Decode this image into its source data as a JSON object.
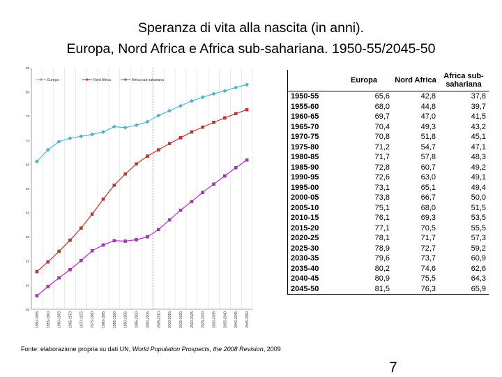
{
  "title_line1": "Speranza di vita alla nascita (in anni).",
  "title_line2": "Europa, Nord Africa e Africa sub-sahariana. 1950-55/2045-50",
  "source_prefix": "Fonte: elaborazione propria su dati UN, ",
  "source_italic": "World Population Prospects, the 2008 Revision",
  "source_suffix": ", 2009",
  "page_number": "7",
  "colors": {
    "europa": "#4db7d4",
    "nord_africa": "#d0312d",
    "africa_sub": "#b030c8",
    "dashed_line": "#aaaaaa",
    "grid": "#dddddd"
  },
  "table": {
    "headers": [
      "",
      "Europa",
      "Nord Africa",
      "Africa sub-sahariana"
    ],
    "rows": [
      [
        "1950-55",
        "65,6",
        "42,8",
        "37,8"
      ],
      [
        "1955-60",
        "68,0",
        "44,8",
        "39,7"
      ],
      [
        "1960-65",
        "69,7",
        "47,0",
        "41,5"
      ],
      [
        "1965-70",
        "70,4",
        "49,3",
        "43,2"
      ],
      [
        "1970-75",
        "70,8",
        "51,8",
        "45,1"
      ],
      [
        "1975-80",
        "71,2",
        "54,7",
        "47,1"
      ],
      [
        "1980-85",
        "71,7",
        "57,8",
        "48,3"
      ],
      [
        "1985-90",
        "72,8",
        "60,7",
        "49,2"
      ],
      [
        "1990-95",
        "72,6",
        "63,0",
        "49,1"
      ],
      [
        "1995-00",
        "73,1",
        "65,1",
        "49,4"
      ],
      [
        "2000-05",
        "73,8",
        "66,7",
        "50,0"
      ],
      [
        "2005-10",
        "75,1",
        "68,0",
        "51,5"
      ],
      [
        "2010-15",
        "76,1",
        "69,3",
        "53,5"
      ],
      [
        "2015-20",
        "77,1",
        "70,5",
        "55,5"
      ],
      [
        "2020-25",
        "78,1",
        "71,7",
        "57,3"
      ],
      [
        "2025-30",
        "78,9",
        "72,7",
        "59,2"
      ],
      [
        "2030-35",
        "79,6",
        "73,7",
        "60,9"
      ],
      [
        "2035-40",
        "80,2",
        "74,6",
        "62,6"
      ],
      [
        "2040-45",
        "80,9",
        "75,5",
        "64,3"
      ],
      [
        "2045-50",
        "81,5",
        "76,3",
        "65,9"
      ]
    ]
  },
  "chart_data": {
    "type": "line",
    "title": "",
    "xlabel": "",
    "ylabel": "",
    "ylim": [
      35,
      85
    ],
    "yticks": [
      "35",
      "40",
      "45",
      "50",
      "55",
      "60",
      "65",
      "70",
      "75",
      "80",
      "85"
    ],
    "grid": false,
    "legend_position": "top",
    "x": [
      "1950-1955",
      "1955-1960",
      "1960-1965",
      "1965-1970",
      "1970-1975",
      "1975-1980",
      "1980-1985",
      "1985-1990",
      "1990-1995",
      "1995-2000",
      "2000-2005",
      "2005-2010",
      "2010-2015",
      "2015-2020",
      "2020-2025",
      "2025-2030",
      "2030-2035",
      "2035-2040",
      "2040-2045",
      "2045-2050"
    ],
    "series": [
      {
        "name": "Europa",
        "marker": "diamond",
        "values": [
          65.6,
          68.0,
          69.7,
          70.4,
          70.8,
          71.2,
          71.7,
          72.8,
          72.6,
          73.1,
          73.8,
          75.1,
          76.1,
          77.1,
          78.1,
          78.9,
          79.6,
          80.2,
          80.9,
          81.5
        ]
      },
      {
        "name": "Nord Africa",
        "marker": "square",
        "values": [
          42.8,
          44.8,
          47.0,
          49.3,
          51.8,
          54.7,
          57.8,
          60.7,
          63.0,
          65.1,
          66.7,
          68.0,
          69.3,
          70.5,
          71.7,
          72.7,
          73.7,
          74.6,
          75.5,
          76.3
        ]
      },
      {
        "name": "Africa sub-sahariana",
        "marker": "square",
        "values": [
          37.8,
          39.7,
          41.5,
          43.2,
          45.1,
          47.1,
          48.3,
          49.2,
          49.1,
          49.4,
          50.0,
          51.5,
          53.5,
          55.5,
          57.3,
          59.2,
          60.9,
          62.6,
          64.3,
          65.9
        ]
      }
    ],
    "vertical_dashed_line_at": "2005-2010"
  }
}
